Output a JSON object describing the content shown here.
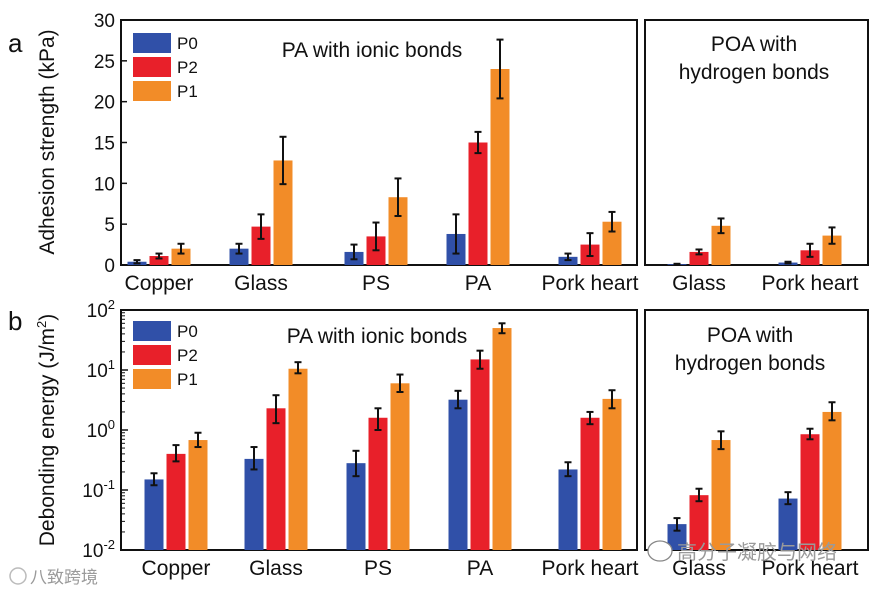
{
  "panel_labels": [
    "a",
    "b"
  ],
  "chart_data": [
    {
      "type": "bar",
      "id": "a-left",
      "title": "PA with ionic bonds",
      "ylabel": "Adhesion strength (kPa)",
      "yscale": "linear",
      "ylim": [
        0,
        30
      ],
      "yticks": [
        0,
        5,
        10,
        15,
        20,
        25,
        30
      ],
      "categories": [
        "Copper",
        "Glass",
        "PS",
        "PA",
        "Pork heart"
      ],
      "legend": {
        "position": "top-left"
      },
      "series": [
        {
          "name": "P0",
          "color": "#3050a8",
          "values": [
            0.4,
            2.0,
            1.6,
            3.8,
            1.0
          ],
          "errors": [
            0.2,
            0.6,
            0.9,
            2.4,
            0.4
          ]
        },
        {
          "name": "P2",
          "color": "#e8202a",
          "values": [
            1.1,
            4.7,
            3.5,
            15.0,
            2.5
          ],
          "errors": [
            0.3,
            1.5,
            1.7,
            1.3,
            1.4
          ]
        },
        {
          "name": "P1",
          "color": "#f28c28",
          "values": [
            2.0,
            12.8,
            8.3,
            24.0,
            5.3
          ],
          "errors": [
            0.6,
            2.9,
            2.3,
            3.6,
            1.2
          ]
        }
      ]
    },
    {
      "type": "bar",
      "id": "a-right",
      "title": "POA with hydrogen bonds",
      "title_lines": [
        "POA with",
        "hydrogen bonds"
      ],
      "yscale": "linear",
      "ylim": [
        0,
        30
      ],
      "categories": [
        "Glass",
        "Pork heart"
      ],
      "series": [
        {
          "name": "P0",
          "color": "#3050a8",
          "values": [
            0.1,
            0.3
          ],
          "errors": [
            0.05,
            0.1
          ]
        },
        {
          "name": "P2",
          "color": "#e8202a",
          "values": [
            1.6,
            1.8
          ],
          "errors": [
            0.3,
            0.8
          ]
        },
        {
          "name": "P1",
          "color": "#f28c28",
          "values": [
            4.8,
            3.6
          ],
          "errors": [
            0.9,
            1.0
          ]
        }
      ]
    },
    {
      "type": "bar",
      "id": "b-left",
      "title": "PA with ionic bonds",
      "ylabel": "Debonding energy (J/m2)",
      "yscale": "log",
      "ylim": [
        0.01,
        100
      ],
      "ytick_exponents": [
        -2,
        -1,
        0,
        1,
        2
      ],
      "categories": [
        "Copper",
        "Glass",
        "PS",
        "PA",
        "Pork heart"
      ],
      "legend": {
        "position": "top-left"
      },
      "series": [
        {
          "name": "P0",
          "color": "#3050a8",
          "values": [
            0.15,
            0.33,
            0.28,
            3.2,
            0.22
          ],
          "err_low": [
            0.12,
            0.22,
            0.17,
            2.3,
            0.17
          ],
          "err_high": [
            0.19,
            0.52,
            0.45,
            4.5,
            0.29
          ]
        },
        {
          "name": "P2",
          "color": "#e8202a",
          "values": [
            0.4,
            2.3,
            1.6,
            15.0,
            1.6
          ],
          "err_low": [
            0.3,
            1.3,
            1.0,
            10.5,
            1.25
          ],
          "err_high": [
            0.56,
            3.8,
            2.3,
            21.0,
            2.0
          ]
        },
        {
          "name": "P1",
          "color": "#f28c28",
          "values": [
            0.68,
            10.5,
            6.0,
            50.0,
            3.3
          ],
          "err_low": [
            0.52,
            8.8,
            4.3,
            41.0,
            2.3
          ],
          "err_high": [
            0.9,
            13.5,
            8.4,
            60.0,
            4.6
          ]
        }
      ]
    },
    {
      "type": "bar",
      "id": "b-right",
      "title": "POA with hydrogen bonds",
      "title_lines": [
        "POA with",
        "hydrogen bonds"
      ],
      "yscale": "log",
      "ylim": [
        0.01,
        100
      ],
      "categories": [
        "Glass",
        "Pork heart"
      ],
      "series": [
        {
          "name": "P0",
          "color": "#3050a8",
          "values": [
            0.027,
            0.072
          ],
          "err_low": [
            0.021,
            0.058
          ],
          "err_high": [
            0.034,
            0.092
          ]
        },
        {
          "name": "P2",
          "color": "#e8202a",
          "values": [
            0.082,
            0.85
          ],
          "err_low": [
            0.065,
            0.7
          ],
          "err_high": [
            0.105,
            1.05
          ]
        },
        {
          "name": "P1",
          "color": "#f28c28",
          "values": [
            0.68,
            2.0
          ],
          "err_low": [
            0.48,
            1.45
          ],
          "err_high": [
            0.95,
            2.9
          ]
        }
      ]
    }
  ],
  "watermarks": {
    "left": "八致跨境",
    "right": "高分子凝胶与网络"
  }
}
